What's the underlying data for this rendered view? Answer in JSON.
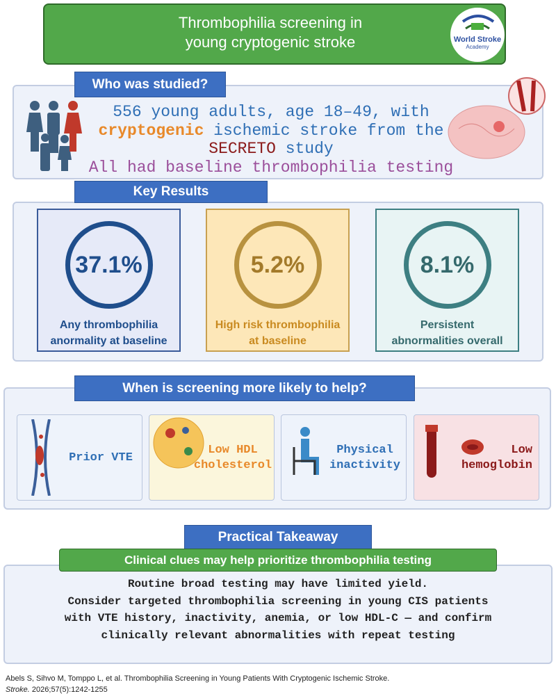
{
  "header": {
    "title_lines": [
      "Thrombophilia screening in",
      "young cryptogenic stroke"
    ],
    "logo": [
      "World Stroke",
      "Academy"
    ]
  },
  "who": {
    "heading": "Who was studied?",
    "line1": "556 young adults, age 18–49, with",
    "line2": [
      "cryptogenic",
      " ischemic stroke from the"
    ],
    "line3": [
      "SECRETO",
      " study"
    ],
    "line4": "All had baseline thrombophilia testing"
  },
  "key_results": {
    "heading": "Key Results",
    "items": [
      {
        "value": "37.1%",
        "label": [
          "Any thrombophilia",
          "anormality at baseline"
        ]
      },
      {
        "value": "5.2%",
        "label": [
          "High risk thrombophilia",
          "at baseline"
        ]
      },
      {
        "value": "8.1%",
        "label": [
          "Persistent",
          "abnormalities overall"
        ]
      }
    ]
  },
  "screening": {
    "heading": "When is screening more likely to help?",
    "items": [
      [
        "Prior VTE"
      ],
      [
        "Low HDL",
        "cholesterol"
      ],
      [
        "Physical",
        "inactivity"
      ],
      [
        "Low",
        "hemoglobin"
      ]
    ]
  },
  "takeaway": {
    "heading": "Practical Takeaway",
    "subheading": "Clinical clues may help prioritize thrombophilia testing",
    "lines": [
      "Routine broad testing may have limited yield.",
      "Consider targeted thrombophilia screening in young CIS patients",
      "with VTE history, inactivity, anemia, or low HDL-C — and confirm",
      "clinically relevant abnormalities with repeat testing"
    ]
  },
  "citation": {
    "line1": "Abels S, Sihvo M, Tomppo L, et al. Thrombophilia Screening in Young Patients With Cryptogenic Ischemic Stroke.",
    "journal": "Stroke.",
    "line2": " 2026;57(5):1242-1255"
  }
}
